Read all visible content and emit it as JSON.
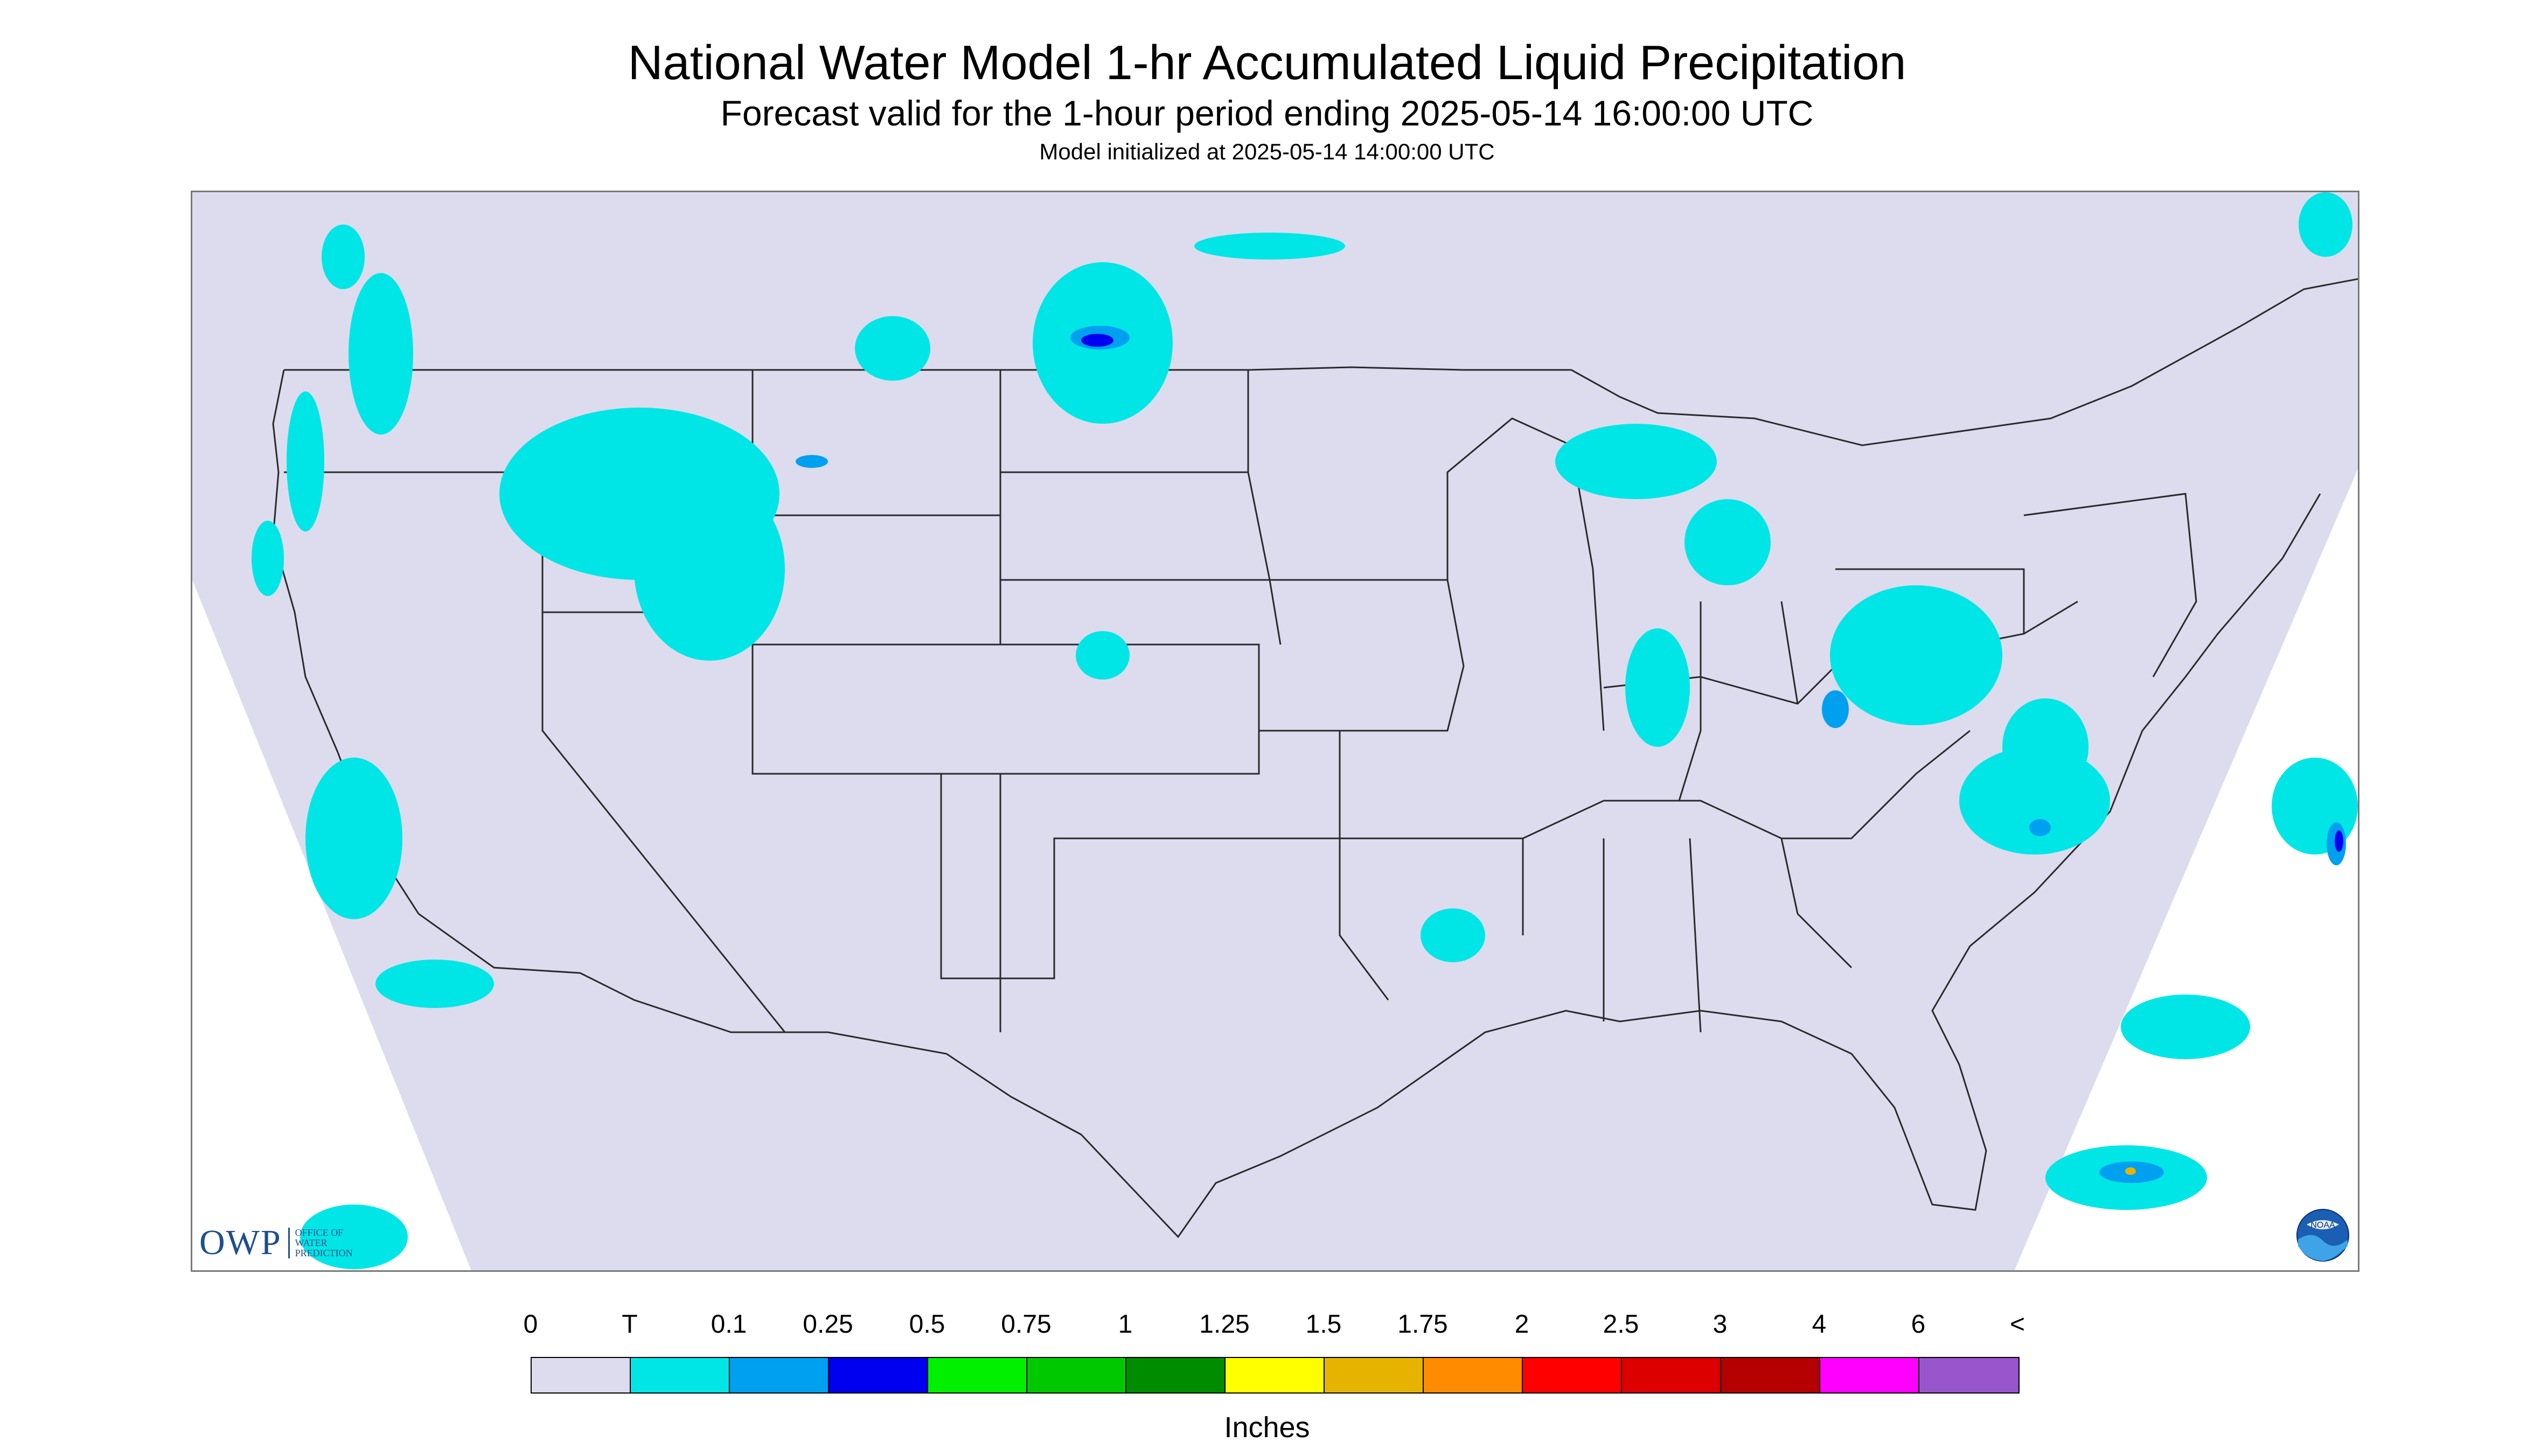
{
  "titles": {
    "main": "National Water Model 1-hr Accumulated Liquid Precipitation",
    "subtitle": "Forecast valid for the 1-hour period ending 2025-05-14 16:00:00 UTC",
    "initialized": "Model initialized at 2025-05-14 14:00:00 UTC"
  },
  "map": {
    "region": "Contiguous United States",
    "background_color": "#dcdcee",
    "boundary_color": "#2a2a2a"
  },
  "legend": {
    "units": "Inches",
    "labels": [
      "0",
      "T",
      "0.1",
      "0.25",
      "0.5",
      "0.75",
      "1",
      "1.25",
      "1.5",
      "1.75",
      "2",
      "2.5",
      "3",
      "4",
      "6",
      "<"
    ],
    "colors": [
      "#dcdcee",
      "#00e6e6",
      "#00a0f0",
      "#0000f0",
      "#00f000",
      "#00c800",
      "#008c00",
      "#ffff00",
      "#e6b400",
      "#ff8c00",
      "#ff0000",
      "#dc0000",
      "#b40000",
      "#ff00ff",
      "#9955cc"
    ]
  },
  "logos": {
    "owp": "OWP",
    "owp_sub": [
      "OFFICE OF",
      "WATER",
      "PREDICTION"
    ],
    "noaa": "NOAA"
  }
}
